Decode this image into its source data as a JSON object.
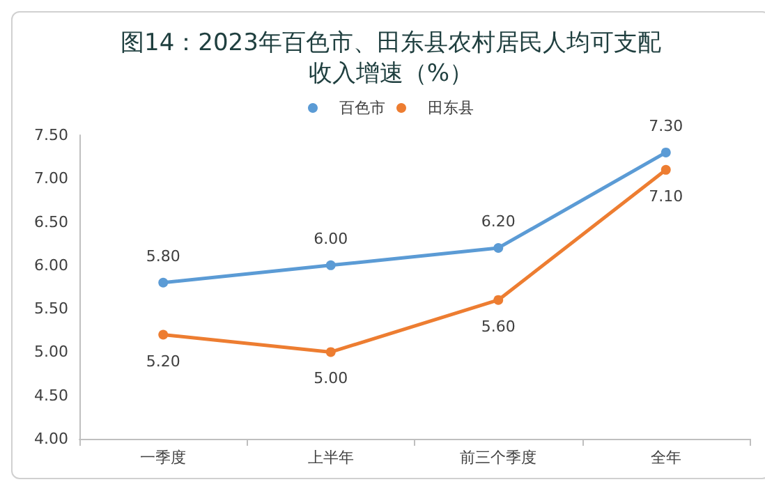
{
  "chart_data": {
    "type": "line",
    "title": "图14：2023年百色市、田东县农村居民人均可支配收入增速（%）",
    "categories": [
      "一季度",
      "上半年",
      "前三个季度",
      "全年"
    ],
    "series": [
      {
        "name": "百色市",
        "color": "#5b9bd5",
        "values": [
          5.8,
          6.0,
          6.2,
          7.3
        ],
        "value_labels": [
          "5.80",
          "6.00",
          "6.20",
          "7.30"
        ]
      },
      {
        "name": "田东县",
        "color": "#ed7d31",
        "values": [
          5.2,
          5.0,
          5.6,
          7.1
        ],
        "value_labels": [
          "5.20",
          "5.00",
          "5.60",
          "7.10"
        ]
      }
    ],
    "ylim": [
      4,
      7.5
    ],
    "yticks": [
      {
        "value": 4,
        "label": "4.00"
      },
      {
        "value": 4.5,
        "label": "4.50"
      },
      {
        "value": 5,
        "label": "5.00"
      },
      {
        "value": 5.5,
        "label": "5.50"
      },
      {
        "value": 6,
        "label": "6.00"
      },
      {
        "value": 6.5,
        "label": "6.50"
      },
      {
        "value": 7,
        "label": "7.00"
      },
      {
        "value": 7.5,
        "label": "7.50"
      }
    ],
    "grid": false,
    "legend": "top",
    "marker": "circle",
    "line_style": "solid"
  }
}
